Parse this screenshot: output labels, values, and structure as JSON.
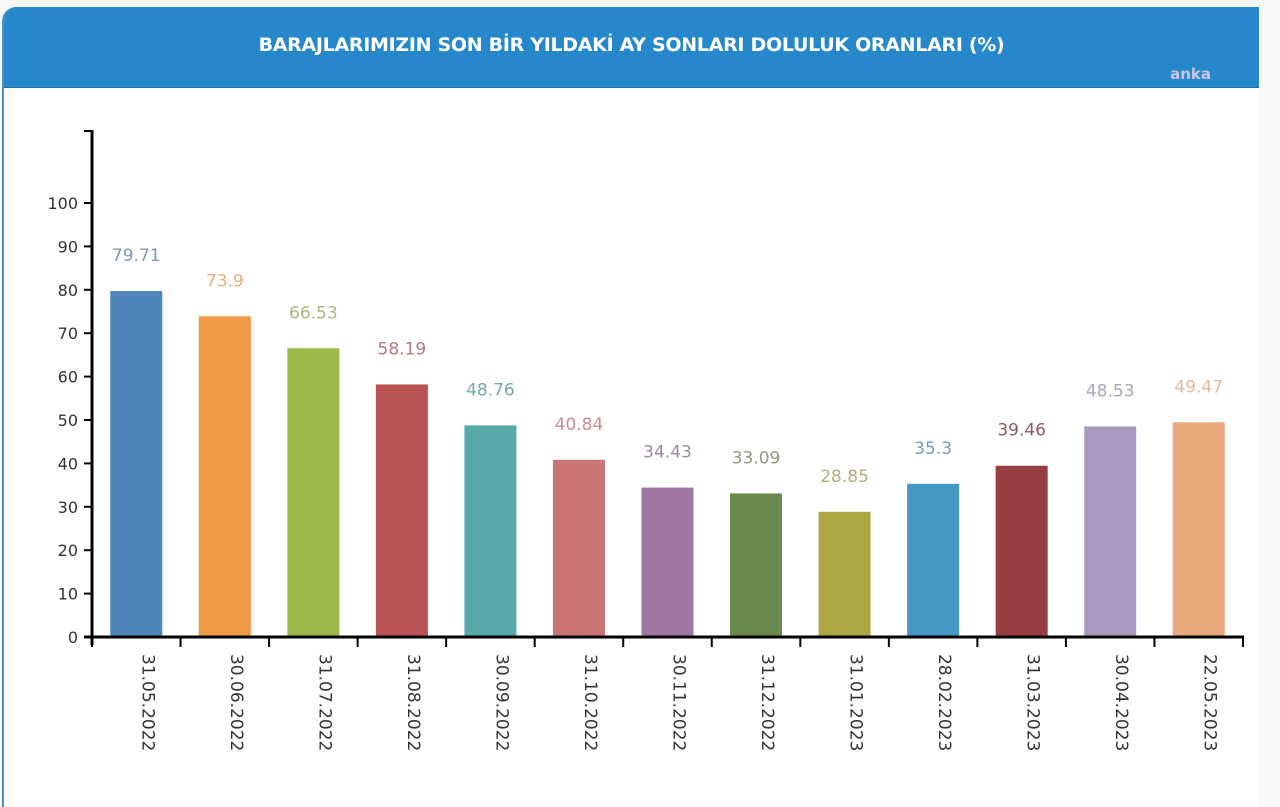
{
  "header": {
    "title": "BARAJLARIMIZIN SON BİR YILDAKİ AY SONLARI DOLULUK ORANLARI (%)",
    "source": "anka"
  },
  "colors": {
    "header_bg": "#2688cb",
    "axis": "#000000"
  },
  "chart_data": {
    "type": "bar",
    "title": "BARAJLARIMIZIN SON BİR YILDAKİ AY SONLARI DOLULUK ORANLARI (%)",
    "xlabel": "",
    "ylabel": "",
    "ylim": [
      0,
      100
    ],
    "yticks": [
      0,
      10,
      20,
      30,
      40,
      50,
      60,
      70,
      80,
      90,
      100
    ],
    "grid": false,
    "legend": "none",
    "categories": [
      "31.05.2022",
      "30.06.2022",
      "31.07.2022",
      "31.08.2022",
      "30.09.2022",
      "31.10.2022",
      "30.11.2022",
      "31.12.2022",
      "31.01.2023",
      "28.02.2023",
      "31.03.2023",
      "30.04.2023",
      "22.05.2023"
    ],
    "values": [
      79.71,
      73.9,
      66.53,
      58.19,
      48.76,
      40.84,
      34.43,
      33.09,
      28.85,
      35.3,
      39.46,
      48.53,
      49.47
    ],
    "value_labels": [
      "79.71",
      "73.9",
      "66.53",
      "58.19",
      "48.76",
      "40.84",
      "34.43",
      "33.09",
      "28.85",
      "35.3",
      "39.46",
      "48.53",
      "49.47"
    ],
    "bar_colors": [
      "#5085bb",
      "#ee9a45",
      "#9cb84a",
      "#bb5253",
      "#57a8a8",
      "#c97576",
      "#a276a3",
      "#6a8a4d",
      "#aca743",
      "#4697c5",
      "#973e43",
      "#a99bbf",
      "#e9a87b"
    ],
    "label_colors": [
      "#7f97b3",
      "#e6ae7c",
      "#a9b67e",
      "#b87779",
      "#77a9ab",
      "#c98e8e",
      "#9f88a5",
      "#8d9a7a",
      "#b3ad78",
      "#6f9fbd",
      "#8f5a5d",
      "#ada3bf",
      "#e3b897"
    ]
  }
}
